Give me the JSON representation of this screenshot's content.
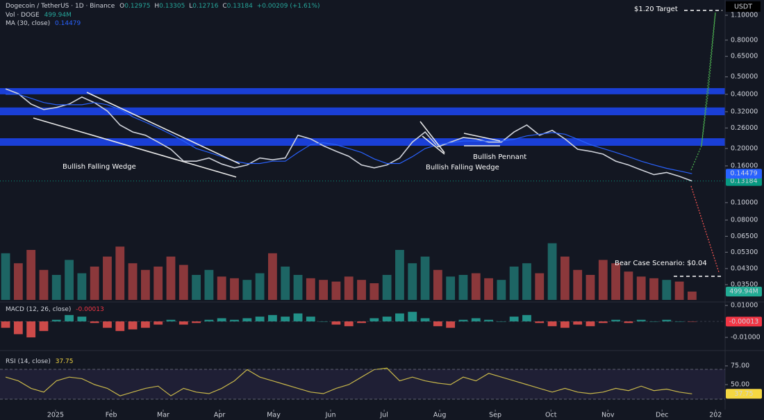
{
  "chart_data": [
    {
      "type": "line",
      "title": "Dogecoin / TetherUS · 1D · Binance",
      "ohlc_letters": [
        "O",
        "H",
        "L",
        "C"
      ],
      "open": 0.12975,
      "high": 0.13305,
      "low": 0.12716,
      "change": "+0.00209 (+1.61%)",
      "currency": "USDT",
      "log_scale": true,
      "categories": [
        null,
        null,
        null,
        null,
        null,
        null,
        null,
        null,
        null,
        null,
        null,
        null,
        null,
        null,
        null,
        null,
        null,
        null,
        null,
        null,
        null,
        null,
        null,
        null,
        null,
        null,
        null,
        null,
        null,
        null,
        null,
        null,
        null,
        null,
        null,
        null,
        null,
        null,
        null,
        null,
        null,
        null,
        null,
        null,
        null,
        null,
        null,
        null,
        null,
        null,
        null,
        null,
        null,
        null,
        null
      ],
      "xlim": [
        -0.44,
        56.6
      ],
      "ylim": [
        0.0288,
        1.337
      ],
      "yticks": [
        {
          "value": 1.1,
          "label": "1.10000"
        },
        {
          "value": 0.8,
          "label": "0.80000"
        },
        {
          "value": 0.65,
          "label": "0.65000"
        },
        {
          "value": 0.5,
          "label": "0.50000"
        },
        {
          "value": 0.4,
          "label": "0.40000"
        },
        {
          "value": 0.32,
          "label": "0.32000"
        },
        {
          "value": 0.26,
          "label": "0.26000"
        },
        {
          "value": 0.2,
          "label": "0.20000"
        },
        {
          "value": 0.16,
          "label": "0.16000"
        },
        {
          "value": 0.1,
          "label": "0.10000"
        },
        {
          "value": 0.08,
          "label": "0.08000"
        },
        {
          "value": 0.065,
          "label": "0.06500"
        },
        {
          "value": 0.053,
          "label": "0.05300"
        },
        {
          "value": 0.043,
          "label": "0.04300"
        },
        {
          "value": 0.035,
          "label": "0.03500"
        }
      ],
      "y2lim": [
        0,
        18000
      ],
      "zones": [
        [
          0.4,
          0.433
        ],
        [
          0.306,
          0.338
        ],
        [
          0.207,
          0.228
        ]
      ],
      "zone_color": "#1a3fd6",
      "series": [
        {
          "color": "#d1d4dc",
          "tag_color": "#089981",
          "price_line": true,
          "values": [
            0.429,
            0.403,
            0.353,
            0.329,
            0.338,
            0.353,
            0.386,
            0.359,
            0.323,
            0.27,
            0.247,
            0.237,
            0.217,
            0.198,
            0.17,
            0.17,
            0.177,
            0.164,
            0.156,
            0.162,
            0.177,
            0.173,
            0.177,
            0.237,
            0.226,
            0.207,
            0.193,
            0.181,
            0.162,
            0.156,
            0.162,
            0.177,
            0.217,
            0.247,
            0.204,
            0.217,
            0.23,
            0.226,
            0.217,
            0.217,
            0.247,
            0.27,
            0.237,
            0.252,
            0.226,
            0.198,
            0.193,
            0.186,
            0.17,
            0.162,
            0.152,
            0.143,
            0.147,
            0.14,
            0.13184
          ]
        },
        {
          "name": "MA (30, close)",
          "color": "#2962ff",
          "tag_color": "#2962ff",
          "values": [
            0.4,
            0.4,
            0.38,
            0.36,
            0.35,
            0.35,
            0.35,
            0.36,
            0.35,
            0.33,
            0.3,
            0.28,
            0.26,
            0.24,
            0.22,
            0.2,
            0.19,
            0.18,
            0.17,
            0.165,
            0.165,
            0.17,
            0.17,
            0.19,
            0.21,
            0.215,
            0.21,
            0.2,
            0.19,
            0.175,
            0.165,
            0.165,
            0.18,
            0.2,
            0.21,
            0.215,
            0.22,
            0.22,
            0.22,
            0.22,
            0.225,
            0.235,
            0.24,
            0.245,
            0.24,
            0.225,
            0.21,
            0.2,
            0.19,
            0.18,
            0.17,
            0.162,
            0.155,
            0.15,
            0.14479
          ]
        },
        {
          "name": "Vol · DOGE",
          "type": "bar",
          "axis": "y2",
          "color": "#26a69a",
          "down_color": "#ef5350",
          "tag_color": "#22ab94",
          "values": [
            2800,
            2200,
            3000,
            1800,
            1500,
            2400,
            1600,
            2000,
            2600,
            3200,
            2200,
            1800,
            2000,
            2600,
            2100,
            1500,
            1800,
            1400,
            1300,
            1200,
            1600,
            2800,
            2000,
            1500,
            1300,
            1200,
            1100,
            1400,
            1200,
            1000,
            1500,
            3000,
            2200,
            2600,
            1800,
            1400,
            1500,
            1600,
            1300,
            1200,
            2000,
            2200,
            1600,
            3400,
            2600,
            1800,
            1500,
            2400,
            2200,
            1700,
            1400,
            1300,
            1200,
            1100,
            499.94
          ],
          "value_labels": [
            null,
            null,
            null,
            null,
            null,
            null,
            null,
            null,
            null,
            null,
            null,
            null,
            null,
            null,
            null,
            null,
            null,
            null,
            null,
            null,
            null,
            null,
            null,
            null,
            null,
            null,
            null,
            null,
            null,
            null,
            null,
            null,
            null,
            null,
            null,
            null,
            null,
            null,
            null,
            null,
            null,
            null,
            null,
            null,
            null,
            null,
            null,
            null,
            null,
            null,
            null,
            null,
            null,
            null,
            "499.94M"
          ]
        }
      ],
      "annotations": [
        "Bullish Falling Wedge",
        "Bullish Falling Wedge",
        "Bullish Pennant",
        "$1.20 Target",
        "Bear Case Scenario: $0.04"
      ]
    },
    {
      "type": "bar",
      "title": "MACD (12, 26, close)",
      "categories": [
        null,
        null,
        null,
        null,
        null,
        null,
        null,
        null,
        null,
        null,
        null,
        null,
        null,
        null,
        null,
        null,
        null,
        null,
        null,
        null,
        null,
        null,
        null,
        null,
        null,
        null,
        null,
        null,
        null,
        null,
        null,
        null,
        null,
        null,
        null,
        null,
        null,
        null,
        null,
        null,
        null,
        null,
        null,
        null,
        null,
        null,
        null,
        null,
        null,
        null,
        null,
        null,
        null,
        null,
        null
      ],
      "xlim": [
        -0.44,
        56.6
      ],
      "ylim": [
        -0.0174,
        0.0113
      ],
      "yticks": [
        {
          "value": 0.01,
          "label": "0.01000"
        },
        {
          "value": -0.01,
          "label": "-0.01000"
        }
      ],
      "series": [
        {
          "color": "#26a69a",
          "down_color": "#ef5350",
          "tag_color": "#f23645",
          "values": [
            -0.004,
            -0.008,
            -0.01,
            -0.006,
            0.001,
            0.004,
            0.003,
            -0.001,
            -0.004,
            -0.006,
            -0.005,
            -0.004,
            -0.002,
            0.001,
            -0.002,
            -0.001,
            0.001,
            0.002,
            0.001,
            0.002,
            0.003,
            0.004,
            0.003,
            0.005,
            0.003,
            0.0,
            -0.002,
            -0.003,
            -0.001,
            0.002,
            0.003,
            0.005,
            0.006,
            0.002,
            -0.003,
            -0.004,
            0.001,
            0.002,
            0.001,
            0.0,
            0.003,
            0.004,
            -0.001,
            -0.003,
            -0.004,
            -0.002,
            -0.003,
            -0.001,
            0.001,
            -0.001,
            0.001,
            0.0,
            0.001,
            0.0,
            -0.00013
          ]
        }
      ]
    },
    {
      "type": "line",
      "title": "RSI (14, close)",
      "categories": [
        null,
        null,
        null,
        null,
        null,
        null,
        null,
        null,
        null,
        null,
        null,
        null,
        null,
        null,
        null,
        null,
        null,
        null,
        null,
        null,
        null,
        null,
        null,
        null,
        null,
        null,
        null,
        null,
        null,
        null,
        null,
        null,
        null,
        null,
        null,
        null,
        null,
        null,
        null,
        null,
        null,
        null,
        null,
        null,
        null,
        null,
        null,
        null,
        null,
        null,
        null,
        null,
        null,
        null,
        null
      ],
      "xlim": [
        -0.44,
        56.6
      ],
      "ylim": [
        16.7,
        92.6
      ],
      "yticks": [
        {
          "value": 75,
          "label": "75.00"
        },
        {
          "value": 50,
          "label": "50.00"
        }
      ],
      "xticks": [
        {
          "value": 3.93,
          "label": "2025"
        },
        {
          "value": 8.31,
          "label": "Feb"
        },
        {
          "value": 12.4,
          "label": "Mar"
        },
        {
          "value": 16.83,
          "label": "Apr"
        },
        {
          "value": 21.09,
          "label": "May"
        },
        {
          "value": 25.57,
          "label": "Jun"
        },
        {
          "value": 29.78,
          "label": "Jul"
        },
        {
          "value": 34.15,
          "label": "Aug"
        },
        {
          "value": 38.52,
          "label": "Sep"
        },
        {
          "value": 42.9,
          "label": "Oct"
        },
        {
          "value": 47.38,
          "label": "Nov"
        },
        {
          "value": 51.64,
          "label": "Dec"
        },
        {
          "value": 55.85,
          "label": "202"
        }
      ],
      "series": [
        {
          "color": "#d4c53a",
          "tag_color": "#f5d742",
          "values": [
            60,
            55,
            45,
            40,
            55,
            60,
            58,
            50,
            45,
            35,
            40,
            45,
            48,
            35,
            45,
            40,
            38,
            45,
            55,
            70,
            60,
            55,
            50,
            45,
            40,
            38,
            45,
            50,
            60,
            70,
            72,
            55,
            60,
            55,
            52,
            50,
            60,
            55,
            65,
            60,
            55,
            50,
            45,
            40,
            45,
            40,
            38,
            40,
            45,
            42,
            48,
            42,
            44,
            40,
            37.75
          ]
        }
      ]
    }
  ]
}
